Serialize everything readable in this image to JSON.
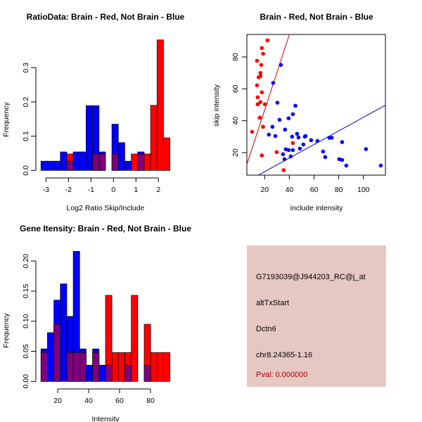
{
  "chart_data": [
    {
      "type": "bar",
      "subtype": "overlaid-histogram",
      "title": "RatioData: Brain - Red, Not Brain - Blue",
      "xlabel": "Log2 Ratio Skip/Include",
      "ylabel": "Frequency",
      "xticks": [
        "-3",
        "-2",
        "-1",
        "0",
        "1",
        "2"
      ],
      "yticks": [
        "0.0",
        "0.1",
        "0.2",
        "0.3"
      ],
      "xlim": [
        -3.22,
        2.51
      ],
      "ylim": [
        0,
        0.38
      ],
      "bin_range": [
        -3.22,
        2.51
      ],
      "series": [
        {
          "name": "Not Brain",
          "color": "#0000FF",
          "values": [
            0.027,
            0.027,
            0.027,
            0.054,
            0.027,
            0.054,
            0.054,
            0.189,
            0.189,
            0.054,
            0,
            0.135,
            0.081,
            0.027,
            0,
            0.054,
            0,
            0,
            0,
            0
          ]
        },
        {
          "name": "Brain",
          "color": "#FF0000",
          "values": [
            0,
            0,
            0,
            0,
            0.048,
            0,
            0,
            0,
            0.048,
            0.048,
            0,
            0.048,
            0,
            0,
            0.048,
            0.048,
            0.048,
            0.19,
            0.381,
            0.095
          ]
        }
      ],
      "overlap_color": "#7F007F"
    },
    {
      "type": "scatter",
      "title": "Brain - Red, Not Brain - Blue",
      "xlabel": "include intensity",
      "ylabel": "skip intensity",
      "xticks": [
        "20",
        "40",
        "60",
        "80",
        "100"
      ],
      "yticks": [
        "20",
        "40",
        "60",
        "80"
      ],
      "xlim": [
        5.6,
        117.8
      ],
      "ylim": [
        5.9,
        94.1
      ],
      "series": [
        {
          "name": "Brain",
          "color": "#FF0000",
          "points": [
            [
              22.3,
              90.4
            ],
            [
              17.7,
              85.6
            ],
            [
              18.7,
              82.0
            ],
            [
              13.8,
              77.6
            ],
            [
              17.2,
              75.0
            ],
            [
              16.6,
              70.0
            ],
            [
              16.6,
              68.1
            ],
            [
              15.1,
              67.2
            ],
            [
              13.8,
              62.2
            ],
            [
              17.7,
              57.8
            ],
            [
              14.3,
              54.7
            ],
            [
              16.6,
              51.7
            ],
            [
              14.3,
              50.3
            ],
            [
              20.2,
              50.3
            ],
            [
              16.0,
              41.9
            ],
            [
              18.7,
              36.2
            ],
            [
              9.8,
              33.1
            ],
            [
              42.8,
              26.0
            ],
            [
              17.7,
              18.2
            ],
            [
              29.7,
              20.3
            ],
            [
              35.4,
              9.0
            ]
          ],
          "fit": {
            "intercept": -0.7,
            "slope": 2.37
          }
        },
        {
          "name": "Not Brain",
          "color": "#0000FF",
          "points": [
            [
              33.1,
              75.0
            ],
            [
              26.9,
              63.7
            ],
            [
              30.3,
              51.3
            ],
            [
              44.9,
              49.4
            ],
            [
              42.8,
              44.1
            ],
            [
              39.4,
              41.5
            ],
            [
              32.0,
              40.6
            ],
            [
              26.3,
              36.2
            ],
            [
              36.5,
              34.4
            ],
            [
              23.4,
              31.3
            ],
            [
              28.6,
              30.4
            ],
            [
              46.2,
              31.8
            ],
            [
              42.2,
              30.0
            ],
            [
              47.4,
              29.5
            ],
            [
              52.5,
              30.0
            ],
            [
              53.1,
              30.4
            ],
            [
              57.6,
              27.8
            ],
            [
              62.7,
              27.3
            ],
            [
              51.3,
              25.1
            ],
            [
              48.5,
              22.5
            ],
            [
              42.8,
              21.6
            ],
            [
              39.4,
              21.6
            ],
            [
              37.1,
              22.1
            ],
            [
              34.8,
              19.0
            ],
            [
              41.1,
              17.6
            ],
            [
              36.0,
              15.9
            ],
            [
              72.4,
              29.3
            ],
            [
              74.3,
              29.3
            ],
            [
              82.7,
              26.6
            ],
            [
              67.3,
              20.7
            ],
            [
              69.0,
              17.2
            ],
            [
              80.4,
              15.9
            ],
            [
              82.7,
              15.4
            ],
            [
              86.1,
              11.9
            ],
            [
              102.0,
              22.2
            ],
            [
              114.0,
              11.9
            ]
          ],
          "fit": {
            "intercept": -0.45,
            "slope": 0.426
          }
        }
      ]
    },
    {
      "type": "bar",
      "subtype": "overlaid-histogram",
      "title": "Gene Itensity: Brain - Red, Not Brain - Blue",
      "xlabel": "Intensity",
      "ylabel": "Frequency",
      "xticks": [
        "20",
        "40",
        "60",
        "80"
      ],
      "yticks": [
        "0.00",
        "0.05",
        "0.10",
        "0.15",
        "0.20"
      ],
      "xlim": [
        9.2,
        92.6
      ],
      "ylim": [
        0,
        0.216
      ],
      "bin_range": [
        9.2,
        92.6
      ],
      "series": [
        {
          "name": "Not Brain",
          "color": "#0000FF",
          "values": [
            0.054,
            0.081,
            0.135,
            0.162,
            0.108,
            0.216,
            0.054,
            0.027,
            0.054,
            0.027,
            0.027,
            0,
            0,
            0.027,
            0,
            0,
            0.027,
            0,
            0,
            0
          ]
        },
        {
          "name": "Brain",
          "color": "#FF0000",
          "values": [
            0.048,
            0,
            0.095,
            0,
            0.048,
            0.048,
            0.048,
            0,
            0.048,
            0,
            0.143,
            0.048,
            0.048,
            0.048,
            0.143,
            0,
            0.095,
            0.048,
            0.048,
            0.048
          ]
        }
      ],
      "overlap_color": "#7F007F"
    }
  ],
  "info_panel": {
    "background": "#E6C8C3",
    "probe_id": "G7193039@J944203_RC@j_at",
    "event_type": "altTxStart",
    "gene": "Dctn6",
    "location": "chr8.24365-1.16",
    "pval": "Pval: 0.000000",
    "pval_color": "#B00000"
  }
}
